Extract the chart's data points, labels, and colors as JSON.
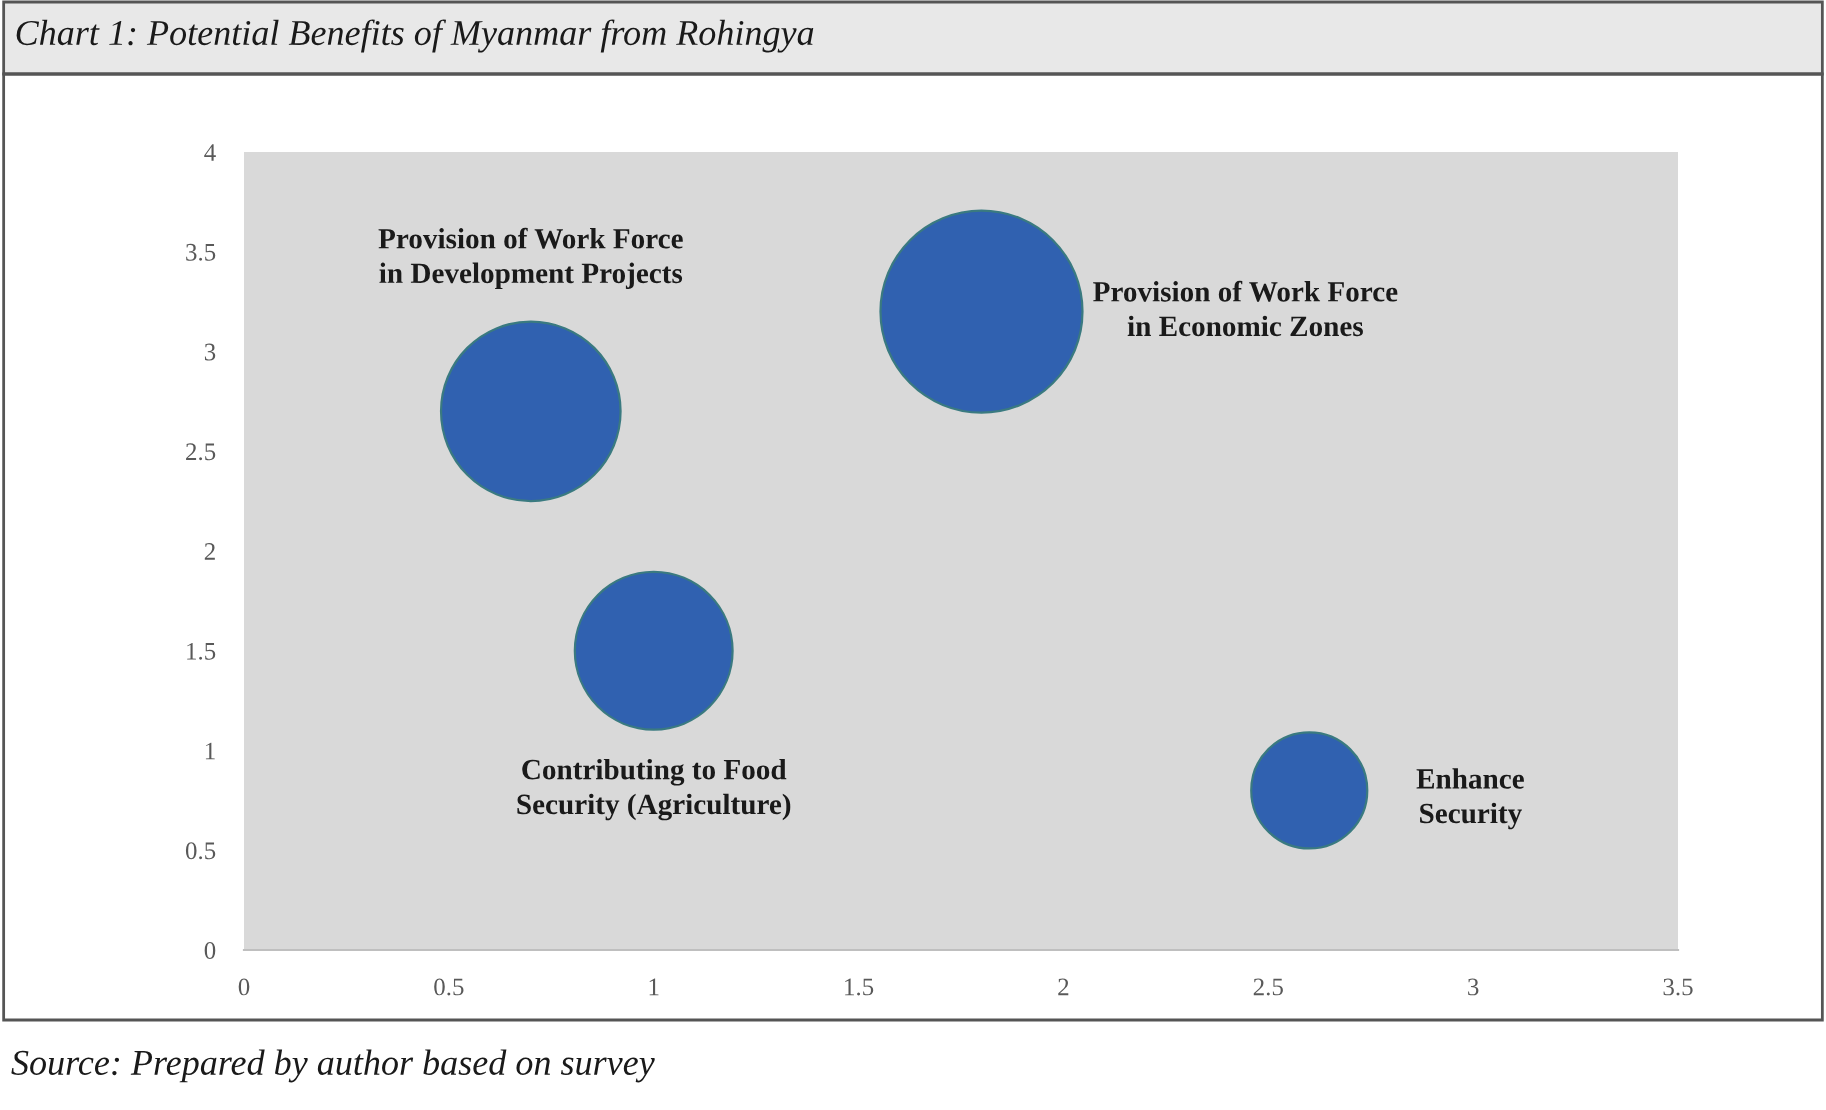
{
  "chart_data": {
    "type": "bubble",
    "title": "Chart 1: Potential Benefits of Myanmar from Rohingya",
    "series": [
      {
        "name": "Provision of Work Force\nin Development Projects",
        "color": "#3061b0",
        "x": [
          0.7
        ],
        "values": [
          2.7
        ],
        "sizes": [
          0.79
        ]
      },
      {
        "name": "Provision of Work Force\nin Economic Zones",
        "color": "#3061b0",
        "x": [
          1.8
        ],
        "values": [
          3.2
        ],
        "sizes": [
          1
        ]
      },
      {
        "name": "Contributing to Food\nSecurity (Agriculture)",
        "color": "#3061b0",
        "x": [
          1.0
        ],
        "values": [
          1.5
        ],
        "sizes": [
          0.61
        ]
      },
      {
        "name": "Enhance\nSecurity",
        "color": "#3061b0",
        "x": [
          2.6
        ],
        "values": [
          0.8
        ],
        "sizes": [
          0.33
        ]
      }
    ],
    "annotations": [
      "Source: Prepared by author based on survey"
    ],
    "xlim": [
      0,
      3.5
    ],
    "xticks": [
      0,
      0.5,
      1,
      1.5,
      2,
      2.5,
      3,
      3.5
    ],
    "ylim": [
      0,
      4
    ],
    "yticks": [
      0,
      0.5,
      1,
      1.5,
      2,
      2.5,
      3,
      3.5,
      4
    ],
    "grid": false,
    "legend": false
  }
}
